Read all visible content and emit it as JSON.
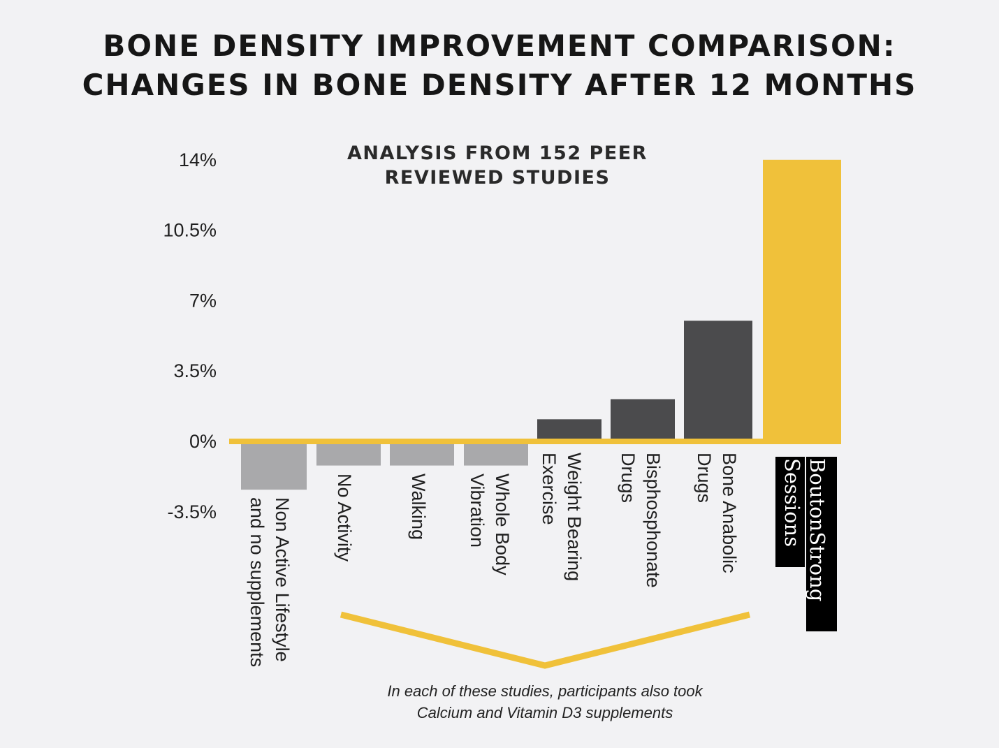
{
  "title_line1": "BONE DENSITY IMPROVEMENT COMPARISON:",
  "title_line2": "CHANGES IN BONE DENSITY AFTER 12 MONTHS",
  "subtitle_line1": "ANALYSIS FROM 152 PEER",
  "subtitle_line2": "REVIEWED STUDIES",
  "footnote_line1": "In each of these studies, participants also took",
  "footnote_line2": "Calcium and Vitamin D3 supplements",
  "colors": {
    "negative": "#a9a9ab",
    "positive": "#4b4b4d",
    "highlight": "#f0c13a",
    "baseline": "#f0c13a",
    "label_box": "#000000"
  },
  "chart_data": {
    "type": "bar",
    "ylim": [
      -3.5,
      14
    ],
    "ticks": [
      {
        "value": 14,
        "label": "14%"
      },
      {
        "value": 10.5,
        "label": "10.5%"
      },
      {
        "value": 7,
        "label": "7%"
      },
      {
        "value": 3.5,
        "label": "3.5%"
      },
      {
        "value": 0,
        "label": "0%"
      },
      {
        "value": -3.5,
        "label": "-3.5%"
      }
    ],
    "categories": [
      {
        "lines": [
          "Non Active Lifestyle",
          "and no supplements"
        ],
        "value": -2.4,
        "style": "negative"
      },
      {
        "lines": [
          "No Activity"
        ],
        "value": -1.2,
        "style": "negative"
      },
      {
        "lines": [
          "Walking"
        ],
        "value": -1.2,
        "style": "negative"
      },
      {
        "lines": [
          "Whole Body",
          "Vibration"
        ],
        "value": -1.2,
        "style": "negative"
      },
      {
        "lines": [
          "Weight Bearing",
          "Exercise"
        ],
        "value": 1.1,
        "style": "positive"
      },
      {
        "lines": [
          "Bisphosphonate",
          "Drugs"
        ],
        "value": 2.1,
        "style": "positive"
      },
      {
        "lines": [
          "Bone Anabolic",
          "Drugs"
        ],
        "value": 6.0,
        "style": "positive"
      },
      {
        "lines": [
          "BoutonStrong",
          "Sessions"
        ],
        "value": 14.0,
        "style": "highlight"
      }
    ],
    "grid": false,
    "legend": "none"
  }
}
